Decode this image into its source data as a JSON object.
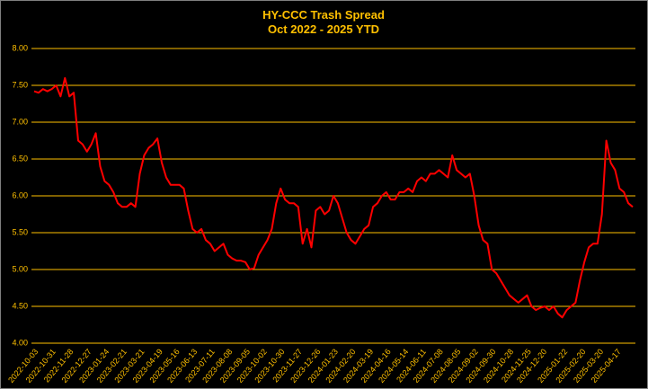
{
  "chart_data": {
    "type": "line",
    "title": "HY-CCC Trash Spread",
    "subtitle": "Oct 2022 - 2025 YTD",
    "x": [
      "2022-10-03",
      "2022-10-10",
      "2022-10-17",
      "2022-10-24",
      "2022-10-31",
      "2022-11-07",
      "2022-11-14",
      "2022-11-21",
      "2022-11-28",
      "2022-12-05",
      "2022-12-12",
      "2022-12-19",
      "2022-12-26",
      "2023-01-02",
      "2023-01-09",
      "2023-01-16",
      "2023-01-23",
      "2023-01-30",
      "2023-02-06",
      "2023-02-13",
      "2023-02-20",
      "2023-02-27",
      "2023-03-06",
      "2023-03-13",
      "2023-03-20",
      "2023-03-27",
      "2023-04-03",
      "2023-04-10",
      "2023-04-17",
      "2023-04-24",
      "2023-05-01",
      "2023-05-08",
      "2023-05-15",
      "2023-05-22",
      "2023-05-29",
      "2023-06-05",
      "2023-06-12",
      "2023-06-19",
      "2023-06-26",
      "2023-07-03",
      "2023-07-10",
      "2023-07-17",
      "2023-07-24",
      "2023-07-31",
      "2023-08-07",
      "2023-08-14",
      "2023-08-21",
      "2023-08-28",
      "2023-09-04",
      "2023-09-11",
      "2023-09-18",
      "2023-09-25",
      "2023-10-02",
      "2023-10-09",
      "2023-10-16",
      "2023-10-23",
      "2023-10-30",
      "2023-11-06",
      "2023-11-13",
      "2023-11-20",
      "2023-11-27",
      "2023-12-04",
      "2023-12-11",
      "2023-12-18",
      "2023-12-25",
      "2024-01-01",
      "2024-01-08",
      "2024-01-15",
      "2024-01-22",
      "2024-01-29",
      "2024-02-05",
      "2024-02-12",
      "2024-02-19",
      "2024-02-26",
      "2024-03-04",
      "2024-03-11",
      "2024-03-18",
      "2024-03-25",
      "2024-04-01",
      "2024-04-08",
      "2024-04-15",
      "2024-04-22",
      "2024-04-29",
      "2024-05-06",
      "2024-05-13",
      "2024-05-20",
      "2024-05-27",
      "2024-06-03",
      "2024-06-10",
      "2024-06-17",
      "2024-06-24",
      "2024-07-01",
      "2024-07-08",
      "2024-07-15",
      "2024-07-22",
      "2024-07-29",
      "2024-08-05",
      "2024-08-12",
      "2024-08-19",
      "2024-08-26",
      "2024-09-02",
      "2024-09-09",
      "2024-09-16",
      "2024-09-23",
      "2024-09-30",
      "2024-10-07",
      "2024-10-14",
      "2024-10-21",
      "2024-10-28",
      "2024-11-04",
      "2024-11-11",
      "2024-11-18",
      "2024-11-25",
      "2024-12-02",
      "2024-12-09",
      "2024-12-16",
      "2024-12-23",
      "2024-12-30",
      "2025-01-06",
      "2025-01-13",
      "2025-01-20",
      "2025-01-27",
      "2025-02-03",
      "2025-02-10",
      "2025-02-17",
      "2025-02-24",
      "2025-03-03",
      "2025-03-10",
      "2025-03-17",
      "2025-03-24",
      "2025-03-31",
      "2025-04-07",
      "2025-04-14",
      "2025-04-21",
      "2025-04-28",
      "2025-05-05",
      "2025-05-12"
    ],
    "series": [
      {
        "color": "#ff0000",
        "values": [
          7.42,
          7.4,
          7.45,
          7.42,
          7.45,
          7.5,
          7.35,
          7.6,
          7.35,
          7.4,
          6.75,
          6.7,
          6.6,
          6.7,
          6.85,
          6.4,
          6.2,
          6.15,
          6.05,
          5.9,
          5.85,
          5.85,
          5.9,
          5.85,
          6.3,
          6.55,
          6.65,
          6.7,
          6.78,
          6.45,
          6.25,
          6.15,
          6.15,
          6.15,
          6.1,
          5.8,
          5.55,
          5.5,
          5.55,
          5.4,
          5.35,
          5.25,
          5.3,
          5.35,
          5.2,
          5.15,
          5.12,
          5.12,
          5.1,
          5.0,
          5.02,
          5.2,
          5.3,
          5.4,
          5.55,
          5.9,
          6.1,
          5.95,
          5.9,
          5.9,
          5.85,
          5.35,
          5.55,
          5.3,
          5.8,
          5.85,
          5.75,
          5.8,
          6.0,
          5.9,
          5.7,
          5.5,
          5.4,
          5.35,
          5.45,
          5.55,
          5.6,
          5.85,
          5.9,
          6.0,
          6.05,
          5.95,
          5.95,
          6.05,
          6.05,
          6.1,
          6.05,
          6.2,
          6.25,
          6.2,
          6.3,
          6.3,
          6.35,
          6.3,
          6.25,
          6.55,
          6.35,
          6.3,
          6.25,
          6.3,
          6.0,
          5.6,
          5.4,
          5.35,
          5.0,
          4.95,
          4.85,
          4.75,
          4.65,
          4.6,
          4.55,
          4.6,
          4.65,
          4.5,
          4.45,
          4.48,
          4.5,
          4.45,
          4.5,
          4.4,
          4.35,
          4.45,
          4.5,
          4.55,
          4.85,
          5.1,
          5.3,
          5.35,
          5.35,
          5.75,
          6.75,
          6.45,
          6.35,
          6.1,
          6.05,
          5.9,
          5.85
        ]
      }
    ],
    "xticks": [
      "2022-10-03",
      "2022-10-31",
      "2022-11-28",
      "2022-12-27",
      "2023-01-24",
      "2023-02-21",
      "2023-03-21",
      "2023-04-19",
      "2023-05-16",
      "2023-06-13",
      "2023-07-11",
      "2023-08-08",
      "2023-09-05",
      "2023-10-02",
      "2023-10-30",
      "2023-11-27",
      "2023-12-26",
      "2024-01-23",
      "2024-02-20",
      "2024-03-19",
      "2024-04-16",
      "2024-05-14",
      "2024-06-11",
      "2024-07-08",
      "2024-08-05",
      "2024-09-02",
      "2024-09-30",
      "2024-10-28",
      "2024-11-25",
      "2024-12-20",
      "2025-01-22",
      "2025-02-20",
      "2025-03-20",
      "2025-04-17"
    ],
    "ylim": [
      4,
      8
    ],
    "yticks": [
      {
        "value": 4,
        "label": "4.00"
      },
      {
        "value": 4.5,
        "label": "4.50"
      },
      {
        "value": 5,
        "label": "5.00"
      },
      {
        "value": 5.5,
        "label": "5.50"
      },
      {
        "value": 6,
        "label": "6.00"
      },
      {
        "value": 6.5,
        "label": "6.50"
      },
      {
        "value": 7,
        "label": "7.00"
      },
      {
        "value": 7.5,
        "label": "7.50"
      },
      {
        "value": 8,
        "label": "8.00"
      }
    ],
    "grid": true
  }
}
